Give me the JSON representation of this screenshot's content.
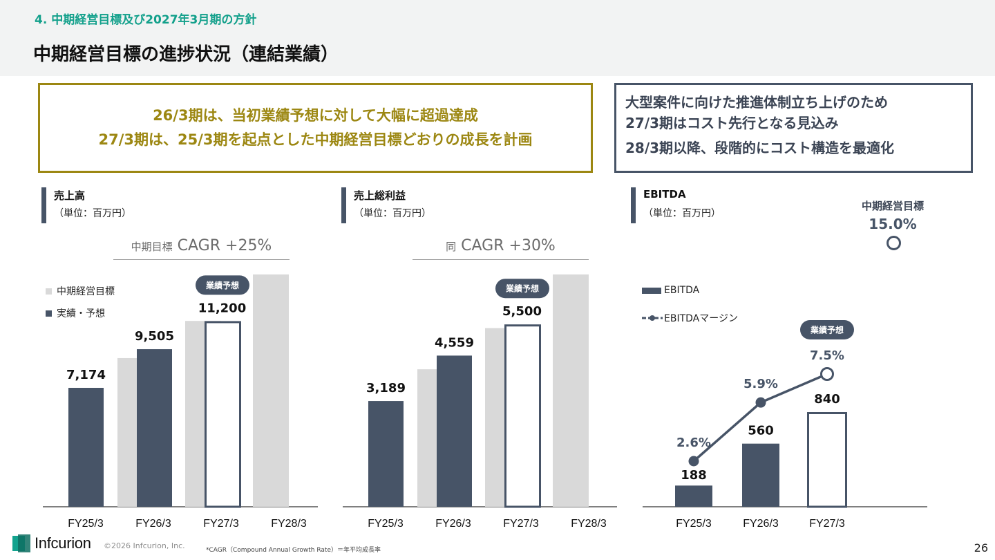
{
  "header": {
    "section": "4. 中期経営目標及び2027年3月期の方針",
    "title": "中期経営目標の進捗状況（連結業績）"
  },
  "callouts": {
    "left": [
      "26/3期は、当初業績予想に対して大幅に超過達成",
      "27/3期は、25/3期を起点とした中期経営目標どおりの成長を計画"
    ],
    "right": [
      "大型案件に向けた推進体制立ち上げのため",
      "27/3期はコスト先行となる見込み",
      "28/3期以降、段階的にコスト構造を最適化"
    ]
  },
  "panels": {
    "sales": {
      "title": "売上高",
      "unit": "（単位：百万円）",
      "cagr_prefix": "中期目標",
      "cagr": "CAGR +25%"
    },
    "gross": {
      "title": "売上総利益",
      "unit": "（単位：百万円）",
      "cagr_prefix": "同",
      "cagr": "CAGR +30%"
    },
    "ebitda": {
      "title": "EBITDA",
      "unit": "（単位：百万円）",
      "mtp_label": "中期経営目標",
      "mtp_value": "15.0%"
    }
  },
  "legend": {
    "target": "中期経営目標",
    "actual": "実績・予想",
    "ebitda": "EBITDA",
    "margin": "EBITDAマージン"
  },
  "forecast_badge": "業績予想",
  "colors": {
    "navy": "#475467",
    "target_gray": "#d9d9d9",
    "gold": "#9c8712",
    "teal": "#13a08b"
  },
  "chart_data": [
    {
      "type": "bar",
      "title": "売上高",
      "categories": [
        "FY25/3",
        "FY26/3",
        "FY27/3",
        "FY28/3"
      ],
      "series": [
        {
          "name": "中期経営目標",
          "values": [
            null,
            8968,
            11210,
            14012
          ]
        },
        {
          "name": "実績・予想",
          "values": [
            7174,
            9505,
            11200,
            null
          ],
          "labels": [
            "7,174",
            "9,505",
            "11,200",
            ""
          ]
        }
      ],
      "forecast_category": "FY27/3"
    },
    {
      "type": "bar",
      "title": "売上総利益",
      "categories": [
        "FY25/3",
        "FY26/3",
        "FY27/3",
        "FY28/3"
      ],
      "series": [
        {
          "name": "中期経営目標",
          "values": [
            null,
            4146,
            5389,
            7006
          ]
        },
        {
          "name": "実績・予想",
          "values": [
            3189,
            4559,
            5500,
            null
          ],
          "labels": [
            "3,189",
            "4,559",
            "5,500",
            ""
          ]
        }
      ],
      "forecast_category": "FY27/3"
    },
    {
      "type": "bar",
      "title": "EBITDA",
      "categories": [
        "FY25/3",
        "FY26/3",
        "FY27/3"
      ],
      "series": [
        {
          "name": "EBITDA",
          "values": [
            188,
            560,
            840
          ],
          "labels": [
            "188",
            "560",
            "840"
          ]
        },
        {
          "name": "EBITDAマージン",
          "values": [
            2.6,
            5.9,
            7.5
          ],
          "labels": [
            "2.6%",
            "5.9%",
            "7.5%"
          ],
          "type": "line"
        }
      ],
      "forecast_category": "FY27/3"
    }
  ],
  "footer": {
    "logo": "Infcurion",
    "copyright": "©2026 Infcurion, Inc.",
    "footnote": "*CAGR（Compound Annual Growth Rate）＝年平均成長率",
    "page": "26"
  }
}
